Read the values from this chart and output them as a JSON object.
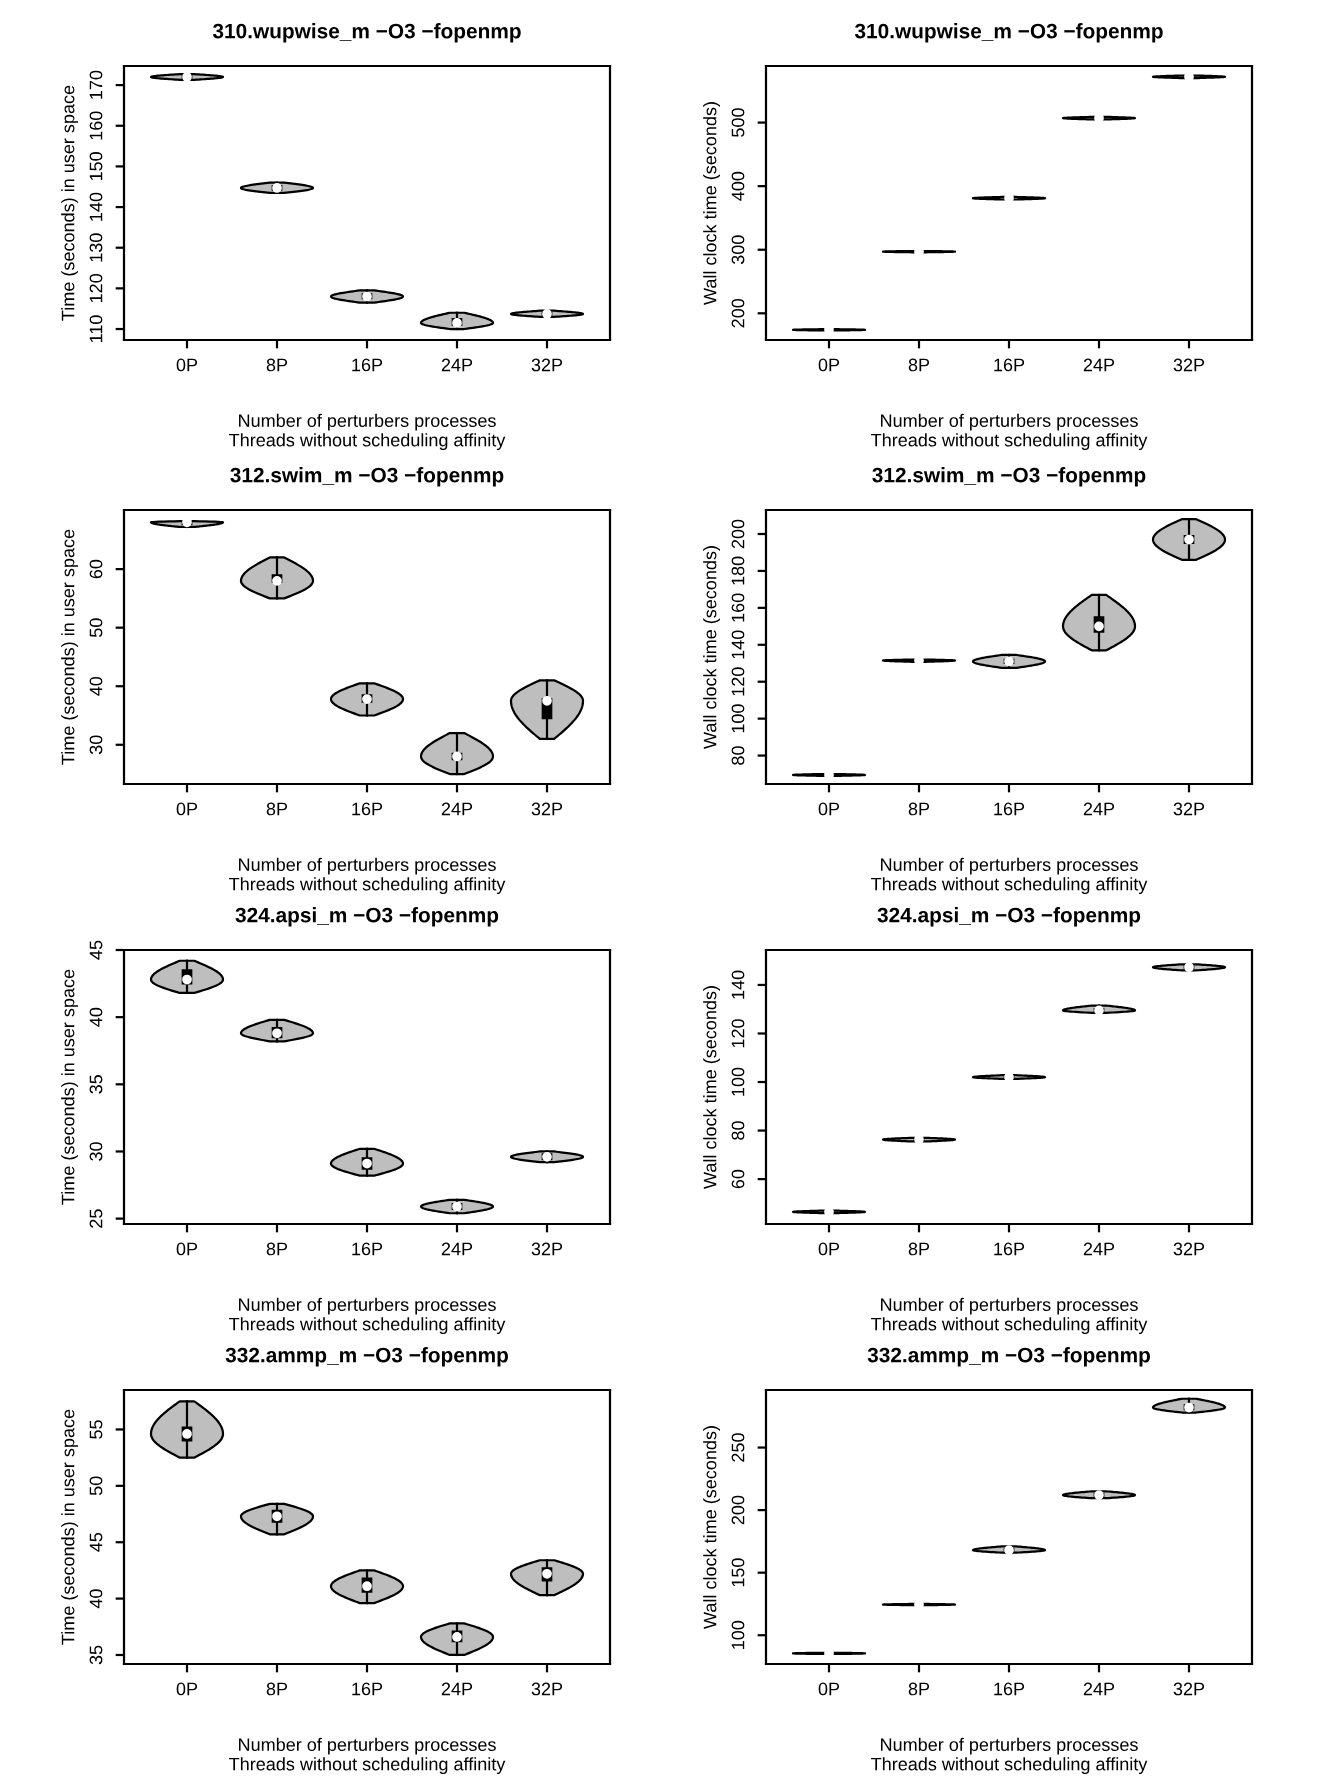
{
  "chart_data": [
    {
      "type": "box",
      "title": "310.wupwise_m −O3 −fopenmp",
      "xlabel": "Number of perturbers processes\nThreads without scheduling affinity",
      "ylabel": "Time (seconds) in user space",
      "categories": [
        "0P",
        "8P",
        "16P",
        "24P",
        "32P"
      ],
      "ylim": [
        107.3,
        174.7
      ],
      "yticks": [
        110,
        120,
        130,
        140,
        150,
        160,
        170
      ],
      "grid": false,
      "color": "#000000",
      "boxes": [
        {
          "low": 171.3,
          "q1": 171.7,
          "median": 172,
          "q3": 172.3,
          "high": 172.7
        },
        {
          "low": 143.5,
          "q1": 144.2,
          "median": 144.7,
          "q3": 145.2,
          "high": 146
        },
        {
          "low": 116.5,
          "q1": 117.5,
          "median": 118,
          "q3": 118.6,
          "high": 119.5
        },
        {
          "low": 110,
          "q1": 111,
          "median": 111.5,
          "q3": 112.5,
          "high": 114
        },
        {
          "low": 113,
          "q1": 113.4,
          "median": 113.7,
          "q3": 114,
          "high": 114.5
        }
      ]
    },
    {
      "type": "box",
      "title": "310.wupwise_m −O3 −fopenmp",
      "xlabel": "Number of perturbers processes\nThreads without scheduling affinity",
      "ylabel": "Wall clock time (seconds)",
      "categories": [
        "0P",
        "8P",
        "16P",
        "24P",
        "32P"
      ],
      "ylim": [
        158,
        589
      ],
      "yticks": [
        200,
        300,
        400,
        500
      ],
      "grid": false,
      "color": "#000000",
      "boxes": [
        {
          "low": 173,
          "q1": 173.5,
          "median": 174,
          "q3": 174.5,
          "high": 175
        },
        {
          "low": 296,
          "q1": 296.5,
          "median": 297,
          "q3": 297.5,
          "high": 298
        },
        {
          "low": 379,
          "q1": 380,
          "median": 381,
          "q3": 382,
          "high": 383
        },
        {
          "low": 505,
          "q1": 506,
          "median": 507,
          "q3": 508,
          "high": 509
        },
        {
          "low": 570,
          "q1": 571,
          "median": 572,
          "q3": 573,
          "high": 574
        }
      ]
    },
    {
      "type": "box",
      "title": "312.swim_m −O3 −fopenmp",
      "xlabel": "Number of perturbers processes\nThreads without scheduling affinity",
      "ylabel": "Time (seconds) in user space",
      "categories": [
        "0P",
        "8P",
        "16P",
        "24P",
        "32P"
      ],
      "ylim": [
        23.3,
        70.1
      ],
      "yticks": [
        30,
        40,
        50,
        60
      ],
      "grid": false,
      "color": "#000000",
      "boxes": [
        {
          "low": 67.2,
          "q1": 67.7,
          "median": 68,
          "q3": 68.1,
          "high": 68.2
        },
        {
          "low": 55,
          "q1": 57.8,
          "median": 58,
          "q3": 59,
          "high": 62
        },
        {
          "low": 35,
          "q1": 37.3,
          "median": 37.8,
          "q3": 38.5,
          "high": 40.5
        },
        {
          "low": 25,
          "q1": 27.5,
          "median": 28,
          "q3": 28.5,
          "high": 32
        },
        {
          "low": 31,
          "q1": 34.5,
          "median": 37.5,
          "q3": 37.8,
          "high": 41
        }
      ]
    },
    {
      "type": "box",
      "title": "312.swim_m −O3 −fopenmp",
      "xlabel": "Number of perturbers processes\nThreads without scheduling affinity",
      "ylabel": "Wall clock time (seconds)",
      "categories": [
        "0P",
        "8P",
        "16P",
        "24P",
        "32P"
      ],
      "ylim": [
        64.6,
        213
      ],
      "yticks": [
        80,
        100,
        120,
        140,
        160,
        180,
        200
      ],
      "grid": false,
      "color": "#000000",
      "boxes": [
        {
          "low": 69,
          "q1": 69.3,
          "median": 69.5,
          "q3": 69.7,
          "high": 70
        },
        {
          "low": 130.8,
          "q1": 131.2,
          "median": 131.5,
          "q3": 131.8,
          "high": 132
        },
        {
          "low": 127.5,
          "q1": 130,
          "median": 131,
          "q3": 132,
          "high": 134.5
        },
        {
          "low": 137,
          "q1": 147,
          "median": 150,
          "q3": 155,
          "high": 167
        },
        {
          "low": 186,
          "q1": 195,
          "median": 197,
          "q3": 199,
          "high": 208
        }
      ]
    },
    {
      "type": "box",
      "title": "324.apsi_m −O3 −fopenmp",
      "xlabel": "Number of perturbers processes\nThreads without scheduling affinity",
      "ylabel": "Time (seconds) in user space",
      "categories": [
        "0P",
        "8P",
        "16P",
        "24P",
        "32P"
      ],
      "ylim": [
        24.6,
        45
      ],
      "yticks": [
        25,
        30,
        35,
        40,
        45
      ],
      "grid": false,
      "color": "#000000",
      "boxes": [
        {
          "low": 41.8,
          "q1": 42.5,
          "median": 42.8,
          "q3": 43.5,
          "high": 44.2
        },
        {
          "low": 38.2,
          "q1": 38.5,
          "median": 38.8,
          "q3": 39.2,
          "high": 39.8
        },
        {
          "low": 28.2,
          "q1": 28.7,
          "median": 29.1,
          "q3": 29.5,
          "high": 30.2
        },
        {
          "low": 25.4,
          "q1": 25.7,
          "median": 25.9,
          "q3": 26.1,
          "high": 26.4
        },
        {
          "low": 29.2,
          "q1": 29.4,
          "median": 29.6,
          "q3": 29.8,
          "high": 30
        }
      ]
    },
    {
      "type": "box",
      "title": "324.apsi_m −O3 −fopenmp",
      "xlabel": "Number of perturbers processes\nThreads without scheduling affinity",
      "ylabel": "Wall clock time (seconds)",
      "categories": [
        "0P",
        "8P",
        "16P",
        "24P",
        "32P"
      ],
      "ylim": [
        41.5,
        154.4
      ],
      "yticks": [
        60,
        80,
        100,
        120,
        140
      ],
      "grid": false,
      "color": "#000000",
      "boxes": [
        {
          "low": 46,
          "q1": 46.3,
          "median": 46.5,
          "q3": 46.7,
          "high": 47
        },
        {
          "low": 75.5,
          "q1": 76,
          "median": 76.3,
          "q3": 76.6,
          "high": 77
        },
        {
          "low": 101.3,
          "q1": 101.8,
          "median": 102,
          "q3": 102.3,
          "high": 102.8
        },
        {
          "low": 128.5,
          "q1": 129,
          "median": 129.5,
          "q3": 130.2,
          "high": 131.5
        },
        {
          "low": 146,
          "q1": 146.8,
          "median": 147.3,
          "q3": 147.8,
          "high": 148.5
        }
      ]
    },
    {
      "type": "box",
      "title": "332.ammp_m −O3 −fopenmp",
      "xlabel": "Number of perturbers processes\nThreads without scheduling affinity",
      "ylabel": "Time (seconds) in user space",
      "categories": [
        "0P",
        "8P",
        "16P",
        "24P",
        "32P"
      ],
      "ylim": [
        34.2,
        58.5
      ],
      "yticks": [
        35,
        40,
        45,
        50,
        55
      ],
      "grid": false,
      "color": "#000000",
      "boxes": [
        {
          "low": 52.5,
          "q1": 54,
          "median": 54.6,
          "q3": 55.2,
          "high": 57.5
        },
        {
          "low": 45.7,
          "q1": 46.8,
          "median": 47.3,
          "q3": 47.8,
          "high": 48.4
        },
        {
          "low": 39.6,
          "q1": 40.6,
          "median": 41.1,
          "q3": 41.8,
          "high": 42.5
        },
        {
          "low": 35,
          "q1": 36.2,
          "median": 36.6,
          "q3": 37.1,
          "high": 37.8
        },
        {
          "low": 40.3,
          "q1": 41.6,
          "median": 42.2,
          "q3": 42.7,
          "high": 43.4
        }
      ]
    },
    {
      "type": "box",
      "title": "332.ammp_m −O3 −fopenmp",
      "xlabel": "Number of perturbers processes\nThreads without scheduling affinity",
      "ylabel": "Wall clock time (seconds)",
      "categories": [
        "0P",
        "8P",
        "16P",
        "24P",
        "32P"
      ],
      "ylim": [
        77,
        296
      ],
      "yticks": [
        100,
        150,
        200,
        250
      ],
      "grid": false,
      "color": "#000000",
      "boxes": [
        {
          "low": 85,
          "q1": 85.3,
          "median": 85.5,
          "q3": 85.7,
          "high": 86
        },
        {
          "low": 124,
          "q1": 124.3,
          "median": 124.5,
          "q3": 124.7,
          "high": 125
        },
        {
          "low": 166,
          "q1": 167.3,
          "median": 168,
          "q3": 169,
          "high": 171
        },
        {
          "low": 209.5,
          "q1": 211,
          "median": 212,
          "q3": 213,
          "high": 215
        },
        {
          "low": 278,
          "q1": 280.5,
          "median": 282,
          "q3": 284,
          "high": 289
        }
      ]
    }
  ]
}
